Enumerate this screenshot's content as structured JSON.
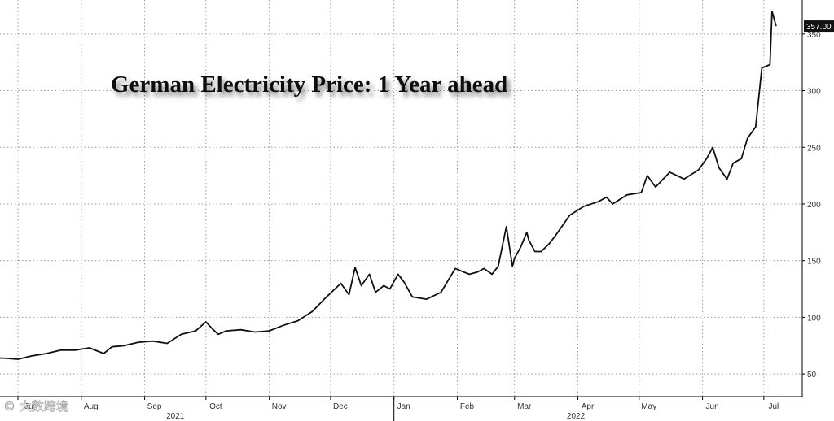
{
  "chart_data": {
    "type": "line",
    "title": "German Electricity Price: 1 Year ahead",
    "xlabel": "",
    "ylabel": "",
    "x_range": [
      "2021-07-01",
      "2022-07-15"
    ],
    "ylim": [
      30,
      380
    ],
    "y_axis_position": "right",
    "yticks": [
      50,
      100,
      150,
      200,
      250,
      300,
      350
    ],
    "xticks": [
      {
        "date": "2021-07-01",
        "label": "Jul"
      },
      {
        "date": "2021-08-01",
        "label": "Aug"
      },
      {
        "date": "2021-09-01",
        "label": "Sep"
      },
      {
        "date": "2021-10-01",
        "label": "Oct"
      },
      {
        "date": "2021-11-01",
        "label": "Nov"
      },
      {
        "date": "2021-12-01",
        "label": "Dec"
      },
      {
        "date": "2022-01-01",
        "label": "Jan"
      },
      {
        "date": "2022-02-01",
        "label": "Feb"
      },
      {
        "date": "2022-03-01",
        "label": "Mar"
      },
      {
        "date": "2022-04-01",
        "label": "Apr"
      },
      {
        "date": "2022-05-01",
        "label": "May"
      },
      {
        "date": "2022-06-01",
        "label": "Jun"
      },
      {
        "date": "2022-07-01",
        "label": "Jul"
      }
    ],
    "year_labels": [
      {
        "date": "2021-09-16",
        "label": "2021"
      },
      {
        "date": "2022-03-31",
        "label": "2022"
      }
    ],
    "grid": true,
    "last_value_label": "357.00",
    "series": [
      {
        "x": [
          "2021-06-17",
          "2021-06-24",
          "2021-07-01",
          "2021-07-08",
          "2021-07-15",
          "2021-07-22",
          "2021-07-29",
          "2021-08-05",
          "2021-08-12",
          "2021-08-16",
          "2021-08-22",
          "2021-08-29",
          "2021-09-05",
          "2021-09-12",
          "2021-09-19",
          "2021-09-26",
          "2021-10-01",
          "2021-10-04",
          "2021-10-07",
          "2021-10-11",
          "2021-10-18",
          "2021-10-25",
          "2021-11-01",
          "2021-11-08",
          "2021-11-15",
          "2021-11-22",
          "2021-11-29",
          "2021-12-06",
          "2021-12-10",
          "2021-12-13",
          "2021-12-16",
          "2021-12-20",
          "2021-12-23",
          "2021-12-27",
          "2021-12-30",
          "2022-01-03",
          "2022-01-06",
          "2022-01-10",
          "2022-01-17",
          "2022-01-24",
          "2022-01-31",
          "2022-02-04",
          "2022-02-07",
          "2022-02-11",
          "2022-02-14",
          "2022-02-18",
          "2022-02-21",
          "2022-02-25",
          "2022-02-28",
          "2022-03-01",
          "2022-03-04",
          "2022-03-07",
          "2022-03-08",
          "2022-03-11",
          "2022-03-14",
          "2022-03-18",
          "2022-03-21",
          "2022-03-28",
          "2022-04-04",
          "2022-04-11",
          "2022-04-15",
          "2022-04-18",
          "2022-04-25",
          "2022-05-02",
          "2022-05-05",
          "2022-05-09",
          "2022-05-16",
          "2022-05-23",
          "2022-05-30",
          "2022-06-03",
          "2022-06-06",
          "2022-06-09",
          "2022-06-13",
          "2022-06-16",
          "2022-06-20",
          "2022-06-23",
          "2022-06-27",
          "2022-06-30",
          "2022-07-04",
          "2022-07-05",
          "2022-07-07"
        ],
        "values": [
          64,
          64,
          63,
          66,
          68,
          71,
          71,
          73,
          68,
          74,
          75,
          78,
          79,
          77,
          85,
          88,
          96,
          90,
          85,
          88,
          89,
          87,
          88,
          93,
          97,
          105,
          118,
          130,
          120,
          144,
          128,
          138,
          122,
          128,
          125,
          138,
          131,
          118,
          116,
          122,
          143,
          140,
          138,
          140,
          143,
          138,
          145,
          180,
          145,
          152,
          162,
          175,
          168,
          158,
          158,
          165,
          172,
          190,
          198,
          202,
          206,
          200,
          208,
          210,
          225,
          215,
          228,
          222,
          230,
          240,
          250,
          232,
          222,
          236,
          240,
          258,
          268,
          320,
          323,
          370,
          357
        ]
      }
    ]
  },
  "watermark": {
    "text": "© 大数跨境"
  }
}
